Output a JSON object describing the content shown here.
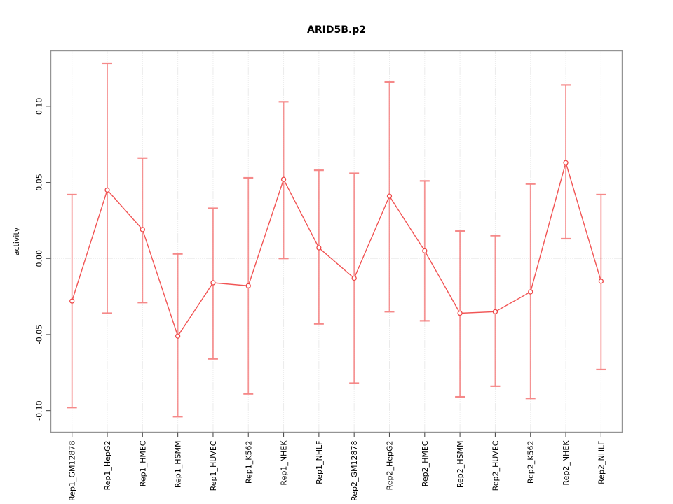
{
  "figure": {
    "title": "ARID5B.p2",
    "ylabel": "activity"
  },
  "chart_data": {
    "type": "line",
    "title": "ARID5B.p2",
    "xlabel": "",
    "ylabel": "activity",
    "legend": "none",
    "grid": {
      "vertical_dotted_per_category": true,
      "horizontal_dotted_at_zero": true
    },
    "ylim": [
      -0.1142,
      0.1365
    ],
    "yticks": [
      -0.1,
      -0.05,
      0.0,
      0.05,
      0.1
    ],
    "ytick_labels": [
      "-0.10",
      "-0.05",
      "0.00",
      "0.05",
      "0.10"
    ],
    "categories": [
      "Rep1_GM12878",
      "Rep1_HepG2",
      "Rep1_HMEC",
      "Rep1_HSMM",
      "Rep1_HUVEC",
      "Rep1_K562",
      "Rep1_NHEK",
      "Rep1_NHLF",
      "Rep2_GM12878",
      "Rep2_HepG2",
      "Rep2_HMEC",
      "Rep2_HSMM",
      "Rep2_HUVEC",
      "Rep2_K562",
      "Rep2_NHEK",
      "Rep2_NHLF"
    ],
    "series": [
      {
        "name": "activity",
        "marker": "open-circle",
        "values": [
          -0.028,
          0.045,
          0.019,
          -0.051,
          -0.016,
          -0.018,
          0.052,
          0.007,
          -0.013,
          0.041,
          0.005,
          -0.036,
          -0.035,
          -0.022,
          0.063,
          -0.015
        ],
        "ci_low": [
          -0.098,
          -0.036,
          -0.029,
          -0.104,
          -0.066,
          -0.089,
          0.0,
          -0.043,
          -0.082,
          -0.035,
          -0.041,
          -0.091,
          -0.084,
          -0.092,
          0.013,
          -0.073
        ],
        "ci_high": [
          0.042,
          0.128,
          0.066,
          0.003,
          0.033,
          0.053,
          0.103,
          0.058,
          0.056,
          0.116,
          0.051,
          0.018,
          0.015,
          0.049,
          0.114,
          0.042
        ]
      }
    ],
    "colors": {
      "line": "#f15454",
      "marker": "#ee4747",
      "errorbar": "#f58383",
      "errorbar_cap": "#f58383",
      "gridline": "#d7d7d7",
      "axis_box": "#949494",
      "tick": "#4f4f4f",
      "text": "#000000",
      "background": "#ffffff"
    }
  }
}
